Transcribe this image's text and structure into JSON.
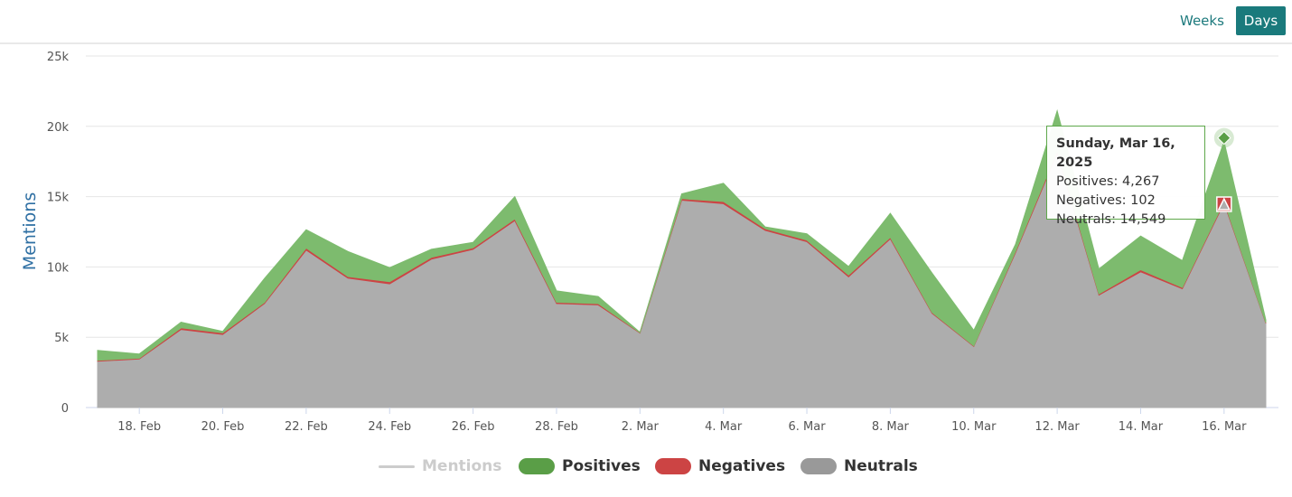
{
  "controls": {
    "weeks_label": "Weeks",
    "days_label": "Days",
    "active": "Days"
  },
  "chart_data": {
    "type": "area",
    "stacked": true,
    "title": "",
    "xlabel": "",
    "ylabel": "Mentions",
    "ylim": [
      0,
      25000
    ],
    "yticks": [
      0,
      5000,
      10000,
      15000,
      20000,
      25000
    ],
    "ytick_labels": [
      "0",
      "5k",
      "10k",
      "15k",
      "20k",
      "25k"
    ],
    "x": [
      "2025-02-17",
      "2025-02-18",
      "2025-02-19",
      "2025-02-20",
      "2025-02-21",
      "2025-02-22",
      "2025-02-23",
      "2025-02-24",
      "2025-02-25",
      "2025-02-26",
      "2025-02-27",
      "2025-02-28",
      "2025-03-01",
      "2025-03-02",
      "2025-03-03",
      "2025-03-04",
      "2025-03-05",
      "2025-03-06",
      "2025-03-07",
      "2025-03-08",
      "2025-03-09",
      "2025-03-10",
      "2025-03-11",
      "2025-03-12",
      "2025-03-13",
      "2025-03-14",
      "2025-03-15",
      "2025-03-16",
      "2025-03-17"
    ],
    "xtick_labels": [
      "18. Feb",
      "20. Feb",
      "22. Feb",
      "24. Feb",
      "26. Feb",
      "28. Feb",
      "2. Mar",
      "4. Mar",
      "6. Mar",
      "8. Mar",
      "10. Mar",
      "12. Mar",
      "14. Mar",
      "16. Mar"
    ],
    "xtick_indices": [
      1,
      3,
      5,
      7,
      9,
      11,
      13,
      15,
      17,
      19,
      21,
      23,
      25,
      27
    ],
    "series": [
      {
        "name": "Neutrals",
        "color": "#adadad",
        "values": [
          3300,
          3450,
          5550,
          5200,
          7400,
          11200,
          9200,
          8800,
          10550,
          11250,
          13300,
          7400,
          7300,
          5300,
          14750,
          14500,
          12600,
          11800,
          9300,
          12000,
          6700,
          4350,
          11000,
          18100,
          8000,
          9650,
          8450,
          14549,
          6000
        ]
      },
      {
        "name": "Negatives",
        "color": "#cc4444",
        "values": [
          60,
          60,
          120,
          110,
          80,
          150,
          120,
          150,
          130,
          110,
          120,
          90,
          90,
          40,
          110,
          150,
          120,
          110,
          130,
          110,
          70,
          40,
          100,
          150,
          80,
          150,
          90,
          102,
          40
        ]
      },
      {
        "name": "Positives",
        "color": "#7dbb6e",
        "values": [
          700,
          300,
          400,
          100,
          1700,
          1300,
          1780,
          1000,
          580,
          390,
          1580,
          810,
          510,
          10,
          340,
          1300,
          130,
          450,
          600,
          1700,
          2800,
          1100,
          500,
          2850,
          1770,
          2400,
          1910,
          4267,
          200
        ]
      }
    ],
    "hidden_series": [
      {
        "name": "Mentions",
        "color": "#cccccc"
      }
    ],
    "legend": [
      {
        "name": "Mentions",
        "style": "line",
        "color": "#cccccc",
        "hidden": true
      },
      {
        "name": "Positives",
        "style": "pill",
        "color": "#5a9e47"
      },
      {
        "name": "Negatives",
        "style": "pill",
        "color": "#cc4444"
      },
      {
        "name": "Neutrals",
        "style": "pill",
        "color": "#999999"
      }
    ],
    "legend_position": "bottom-center",
    "grid": true,
    "tooltip": {
      "title": "Sunday, Mar 16, 2025",
      "lines": [
        "Positives: 4,267",
        "Negatives: 102",
        "Neutrals: 14,549"
      ],
      "index": 27
    }
  }
}
